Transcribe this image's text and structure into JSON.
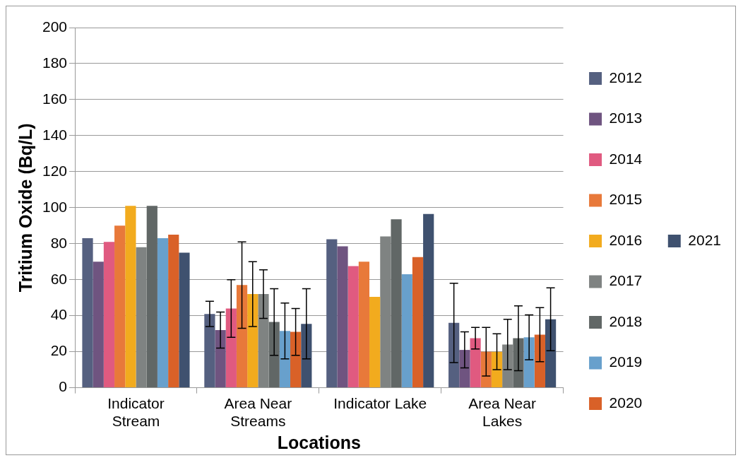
{
  "chart_data": {
    "type": "bar",
    "xlabel": "Locations",
    "ylabel": "Tritium Oxide (Bq/L)",
    "categories": [
      "Indicator Stream",
      "Area Near Streams",
      "Indicator Lake",
      "Area Near Lakes"
    ],
    "ylim": [
      0,
      200
    ],
    "yticks": [
      0,
      20,
      40,
      60,
      80,
      100,
      120,
      140,
      160,
      180,
      200
    ],
    "grid": "y",
    "legend": "right",
    "series": [
      {
        "name": "2012",
        "color": "#556080",
        "values": [
          83,
          41,
          82.5,
          36
        ],
        "errors": [
          null,
          7,
          null,
          22
        ]
      },
      {
        "name": "2013",
        "color": "#6f5480",
        "values": [
          70,
          32,
          78.5,
          21
        ],
        "errors": [
          null,
          10,
          null,
          10
        ]
      },
      {
        "name": "2014",
        "color": "#e05a80",
        "values": [
          81,
          44,
          67.5,
          27.5
        ],
        "errors": [
          null,
          16,
          null,
          6
        ]
      },
      {
        "name": "2015",
        "color": "#e8793a",
        "values": [
          90,
          57,
          70,
          20
        ],
        "errors": [
          null,
          24,
          null,
          13.5
        ]
      },
      {
        "name": "2016",
        "color": "#f2ab1e",
        "values": [
          101,
          52,
          50.5,
          20
        ],
        "errors": [
          null,
          18,
          null,
          10
        ]
      },
      {
        "name": "2017",
        "color": "#7f8382",
        "values": [
          78,
          52,
          84,
          24
        ],
        "errors": [
          null,
          13.5,
          null,
          14
        ]
      },
      {
        "name": "2018",
        "color": "#616766",
        "values": [
          101,
          36.5,
          93.5,
          27.5
        ],
        "errors": [
          null,
          18.5,
          null,
          18
        ]
      },
      {
        "name": "2019",
        "color": "#68a0cc",
        "values": [
          83,
          31.5,
          63,
          28
        ],
        "errors": [
          null,
          15.5,
          null,
          12.5
        ]
      },
      {
        "name": "2020",
        "color": "#d96128",
        "values": [
          85,
          31,
          72.5,
          29.5
        ],
        "errors": [
          null,
          13,
          null,
          15
        ]
      },
      {
        "name": "2021",
        "color": "#3f516f",
        "values": [
          75,
          35.5,
          96.5,
          38
        ],
        "errors": [
          null,
          19.5,
          null,
          17.5
        ]
      }
    ]
  }
}
